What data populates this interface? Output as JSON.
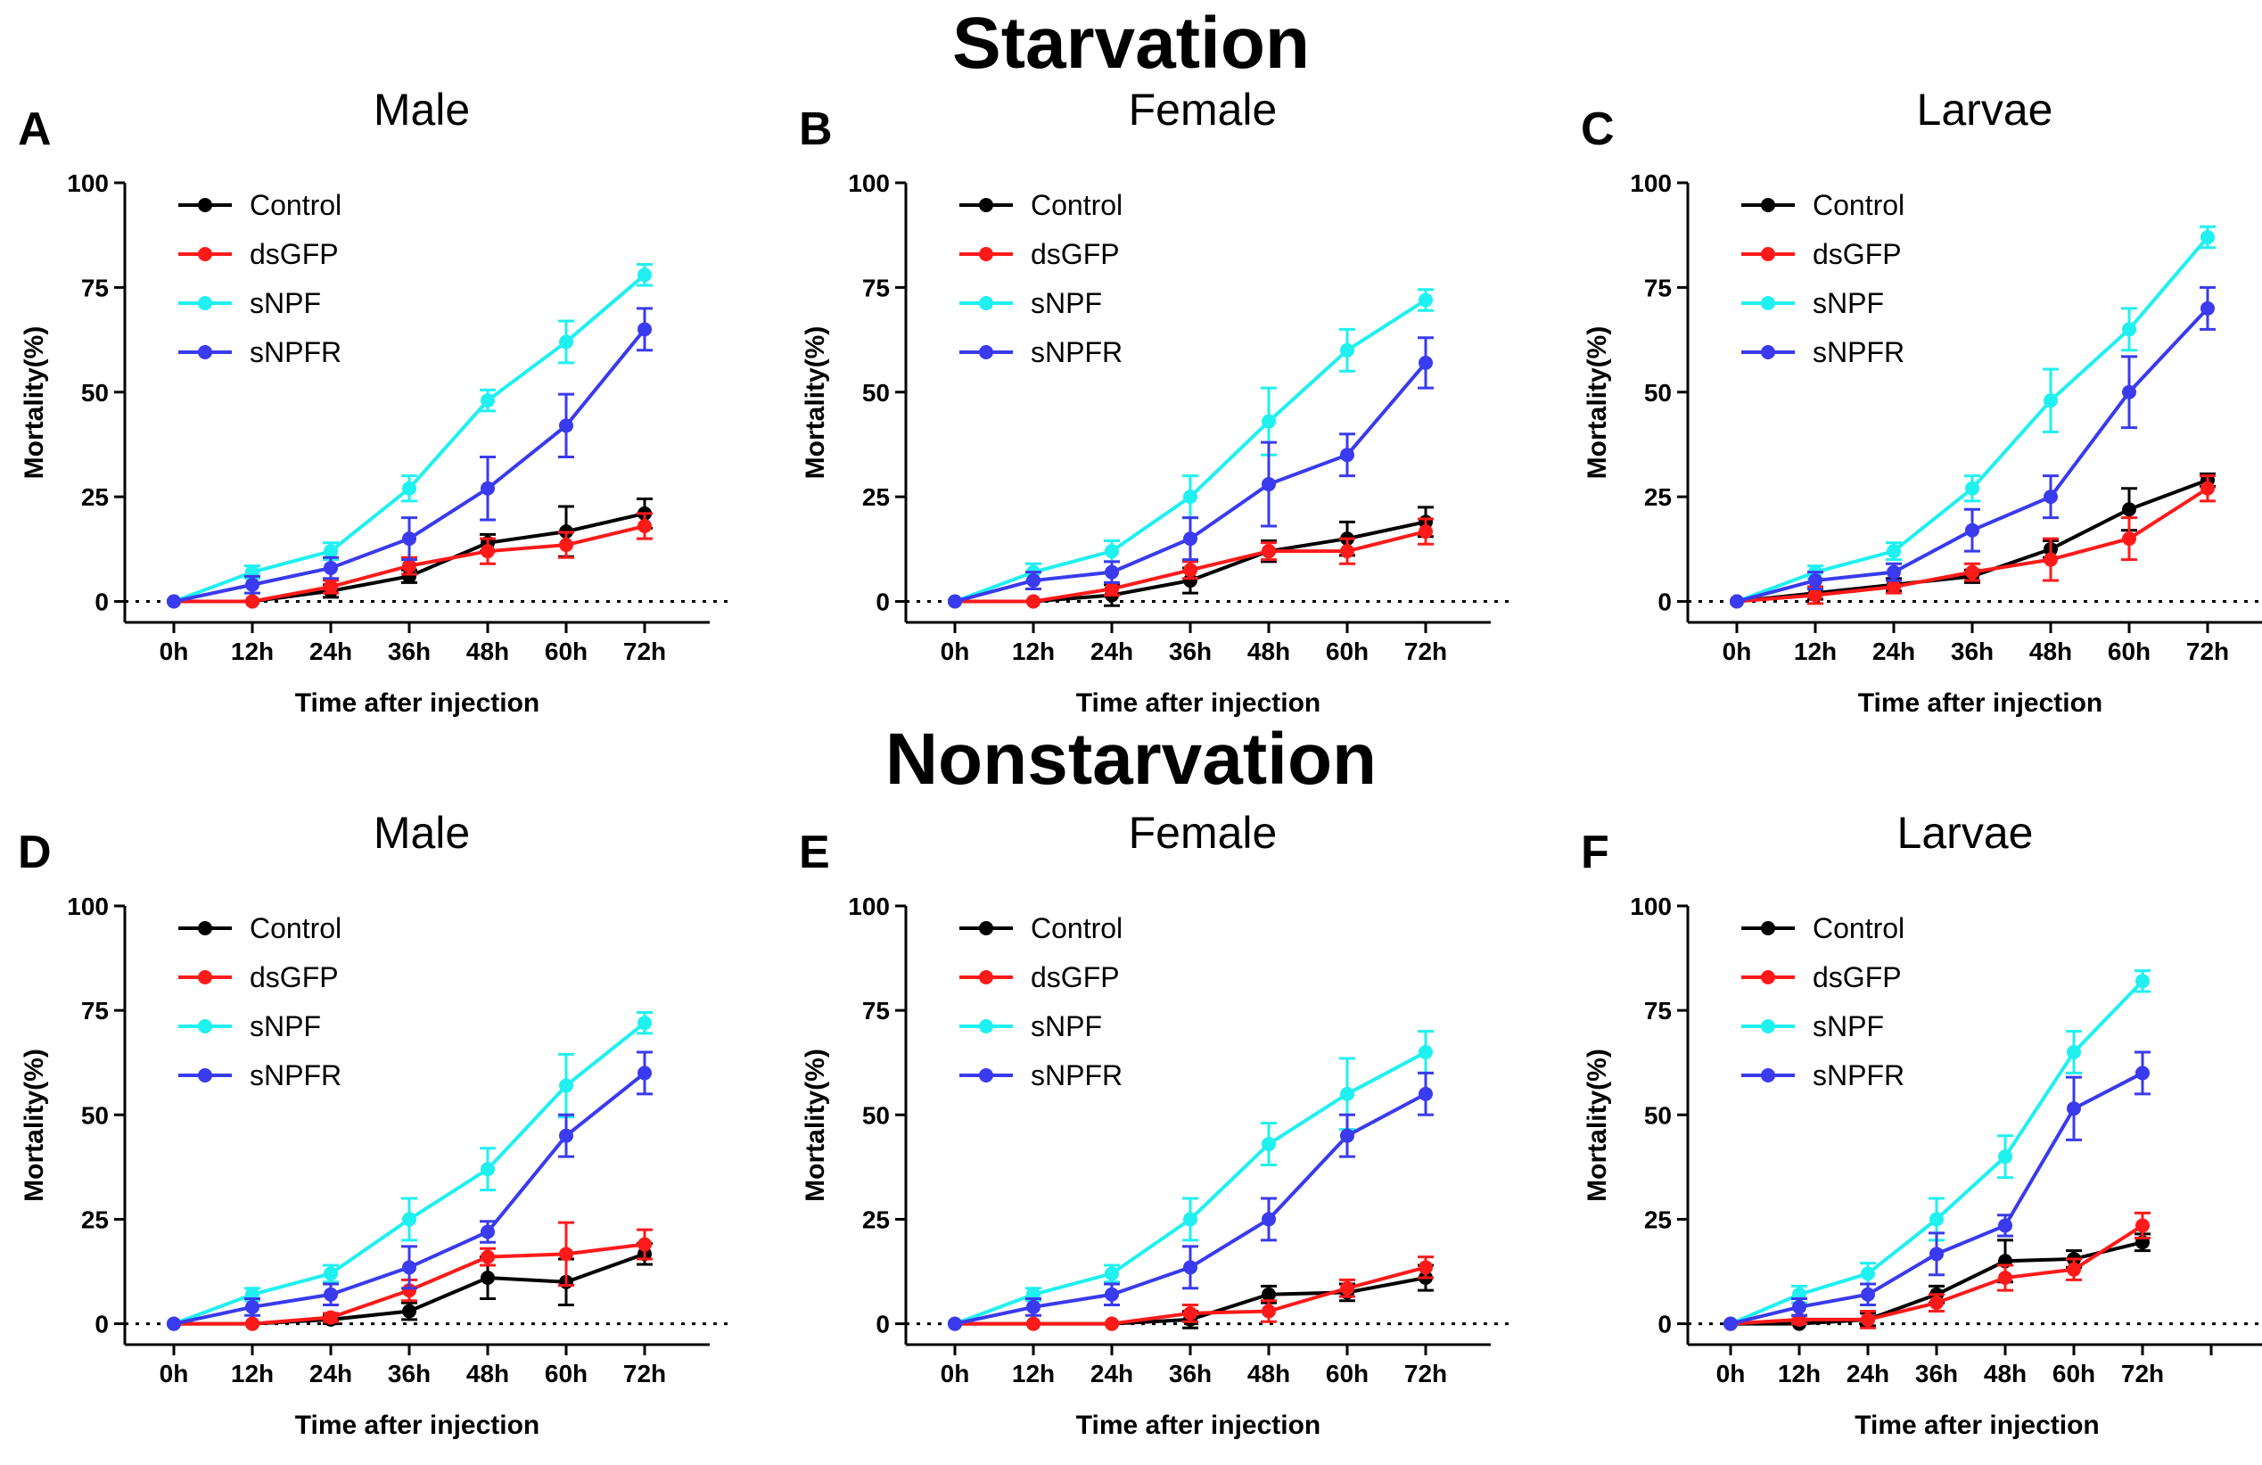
{
  "sections": {
    "top": "Starvation",
    "bottom": "Nonstarvation"
  },
  "colors": {
    "Control": "#000000",
    "dsGFP": "#ff1a1a",
    "sNPF": "#1ff0f0",
    "sNPFR": "#3a3aee"
  },
  "chart_data": [
    {
      "panel": "A",
      "group": "Starvation",
      "title": "Male",
      "type": "line",
      "xlabel": "Time after injection",
      "ylabel": "Mortality(%)",
      "categories": [
        "0h",
        "12h",
        "24h",
        "36h",
        "48h",
        "60h",
        "72h"
      ],
      "yticks": [
        0,
        25,
        50,
        75,
        100
      ],
      "ylim": [
        -5,
        100
      ],
      "reference_line": 0,
      "legend": "top-left",
      "series": [
        {
          "name": "Control",
          "values": [
            0,
            0,
            2.5,
            6,
            14,
            16.7,
            21
          ],
          "errors": [
            0,
            0,
            1.5,
            1.5,
            2,
            6,
            3.5
          ]
        },
        {
          "name": "dsGFP",
          "values": [
            0,
            0,
            3.5,
            8.5,
            12,
            13.5,
            18
          ],
          "errors": [
            0,
            0,
            1.5,
            2,
            3,
            3,
            3
          ]
        },
        {
          "name": "sNPF",
          "values": [
            0,
            7,
            12,
            27,
            48,
            62,
            78
          ],
          "errors": [
            0,
            1.5,
            2,
            3,
            2.5,
            5,
            2.5
          ]
        },
        {
          "name": "sNPFR",
          "values": [
            0,
            4,
            8,
            15,
            27,
            42,
            65
          ],
          "errors": [
            0,
            2,
            2.5,
            5,
            7.5,
            7.5,
            5
          ]
        }
      ]
    },
    {
      "panel": "B",
      "group": "Starvation",
      "title": "Female",
      "type": "line",
      "xlabel": "Time after injection",
      "ylabel": "Mortality(%)",
      "categories": [
        "0h",
        "12h",
        "24h",
        "36h",
        "48h",
        "60h",
        "72h"
      ],
      "yticks": [
        0,
        25,
        50,
        75,
        100
      ],
      "ylim": [
        -5,
        100
      ],
      "reference_line": 0,
      "legend": "top-left",
      "series": [
        {
          "name": "Control",
          "values": [
            0,
            0,
            1.5,
            5,
            12,
            15,
            19
          ],
          "errors": [
            0,
            0,
            2.5,
            3,
            2.5,
            4,
            3.5
          ]
        },
        {
          "name": "dsGFP",
          "values": [
            0,
            0,
            3,
            7.5,
            12,
            12,
            16.7
          ],
          "errors": [
            0,
            0,
            1.5,
            2,
            2,
            3,
            3
          ]
        },
        {
          "name": "sNPF",
          "values": [
            0,
            7,
            12,
            25,
            43,
            60,
            72
          ],
          "errors": [
            0,
            2,
            2.5,
            5,
            8,
            5,
            2.5
          ]
        },
        {
          "name": "sNPFR",
          "values": [
            0,
            5,
            7,
            15,
            28,
            35,
            57
          ],
          "errors": [
            0,
            2,
            2.5,
            5,
            10,
            5,
            6
          ]
        }
      ]
    },
    {
      "panel": "C",
      "group": "Starvation",
      "title": "Larvae",
      "type": "line",
      "xlabel": "Time after injection",
      "ylabel": "Mortality(%)",
      "categories": [
        "0h",
        "12h",
        "24h",
        "36h",
        "48h",
        "60h",
        "72h"
      ],
      "yticks": [
        0,
        25,
        50,
        75,
        100
      ],
      "ylim": [
        -5,
        100
      ],
      "reference_line": 0,
      "legend": "top-left",
      "series": [
        {
          "name": "Control",
          "values": [
            0,
            2,
            4,
            6,
            12.5,
            22,
            29
          ],
          "errors": [
            0,
            1.5,
            1.5,
            1.5,
            2,
            5,
            1.5
          ]
        },
        {
          "name": "dsGFP",
          "values": [
            0,
            1.5,
            3.5,
            7,
            10,
            15,
            27
          ],
          "errors": [
            0,
            2,
            1.5,
            2,
            5,
            5,
            3
          ]
        },
        {
          "name": "sNPF",
          "values": [
            0,
            7,
            12,
            27,
            48,
            65,
            87
          ],
          "errors": [
            0,
            1.5,
            2,
            3,
            7.5,
            5,
            2.5
          ]
        },
        {
          "name": "sNPFR",
          "values": [
            0,
            5,
            7,
            17,
            25,
            50,
            70
          ],
          "errors": [
            0,
            2,
            2,
            5,
            5,
            8.5,
            5
          ]
        }
      ]
    },
    {
      "panel": "D",
      "group": "Nonstarvation",
      "title": "Male",
      "type": "line",
      "xlabel": "Time after injection",
      "ylabel": "Mortality(%)",
      "categories": [
        "0h",
        "12h",
        "24h",
        "36h",
        "48h",
        "60h",
        "72h"
      ],
      "yticks": [
        0,
        25,
        50,
        75,
        100
      ],
      "ylim": [
        -5,
        100
      ],
      "reference_line": 0,
      "legend": "top-left",
      "series": [
        {
          "name": "Control",
          "values": [
            0,
            0,
            1,
            3,
            11,
            10,
            16.7
          ],
          "errors": [
            0,
            0,
            1,
            2,
            5,
            5.5,
            2.5
          ]
        },
        {
          "name": "dsGFP",
          "values": [
            0,
            0,
            1.5,
            8,
            16,
            16.7,
            19
          ],
          "errors": [
            0,
            0,
            1,
            2.5,
            2,
            7.5,
            3.5
          ]
        },
        {
          "name": "sNPF",
          "values": [
            0,
            7,
            12,
            25,
            37,
            57,
            72
          ],
          "errors": [
            0,
            1.5,
            2,
            5,
            5,
            7.5,
            2.5
          ]
        },
        {
          "name": "sNPFR",
          "values": [
            0,
            4,
            7,
            13.5,
            22,
            45,
            60
          ],
          "errors": [
            0,
            2,
            2.5,
            5,
            2.5,
            5,
            5
          ]
        }
      ]
    },
    {
      "panel": "E",
      "group": "Nonstarvation",
      "title": "Female",
      "type": "line",
      "xlabel": "Time after injection",
      "ylabel": "Mortality(%)",
      "categories": [
        "0h",
        "12h",
        "24h",
        "36h",
        "48h",
        "60h",
        "72h"
      ],
      "yticks": [
        0,
        25,
        50,
        75,
        100
      ],
      "ylim": [
        -5,
        100
      ],
      "reference_line": 0,
      "legend": "top-left",
      "series": [
        {
          "name": "Control",
          "values": [
            0,
            0,
            0,
            1,
            7,
            7.5,
            11
          ],
          "errors": [
            0,
            0,
            0,
            2,
            2,
            2,
            3
          ]
        },
        {
          "name": "dsGFP",
          "values": [
            0,
            0,
            0,
            2.5,
            3,
            8.5,
            13.5
          ],
          "errors": [
            0,
            0,
            0,
            2,
            2.5,
            2,
            2.5
          ]
        },
        {
          "name": "sNPF",
          "values": [
            0,
            7,
            12,
            25,
            43,
            55,
            65
          ],
          "errors": [
            0,
            1.5,
            2,
            5,
            5,
            8.5,
            5
          ]
        },
        {
          "name": "sNPFR",
          "values": [
            0,
            4,
            7,
            13.5,
            25,
            45,
            55
          ],
          "errors": [
            0,
            2,
            2.5,
            5,
            5,
            5,
            5
          ]
        }
      ]
    },
    {
      "panel": "F",
      "group": "Nonstarvation",
      "title": "Larvae",
      "type": "line",
      "xlabel": "Time after injection",
      "ylabel": "Mortality(%)",
      "categories": [
        "0h",
        "12h",
        "24h",
        "36h",
        "48h",
        "60h",
        "72h"
      ],
      "yticks": [
        0,
        25,
        50,
        75,
        100
      ],
      "ylim": [
        -5,
        100
      ],
      "reference_line": 0,
      "legend": "top-left",
      "series": [
        {
          "name": "Control",
          "values": [
            0,
            0,
            1,
            7,
            15,
            15.5,
            19.5
          ],
          "errors": [
            0,
            0,
            1.5,
            2,
            5,
            2,
            2
          ]
        },
        {
          "name": "dsGFP",
          "values": [
            0,
            1,
            1,
            5,
            11,
            13,
            23.5
          ],
          "errors": [
            0,
            1,
            2,
            2,
            3,
            2.5,
            3
          ]
        },
        {
          "name": "sNPF",
          "values": [
            0,
            7,
            12,
            25,
            40,
            65,
            82
          ],
          "errors": [
            0,
            2,
            2.5,
            5,
            5,
            5,
            2.5
          ]
        },
        {
          "name": "sNPFR",
          "values": [
            0,
            4,
            7,
            16.7,
            23.5,
            51.5,
            60
          ],
          "errors": [
            0,
            2,
            2.5,
            5,
            2.5,
            7.5,
            5
          ]
        }
      ]
    }
  ]
}
